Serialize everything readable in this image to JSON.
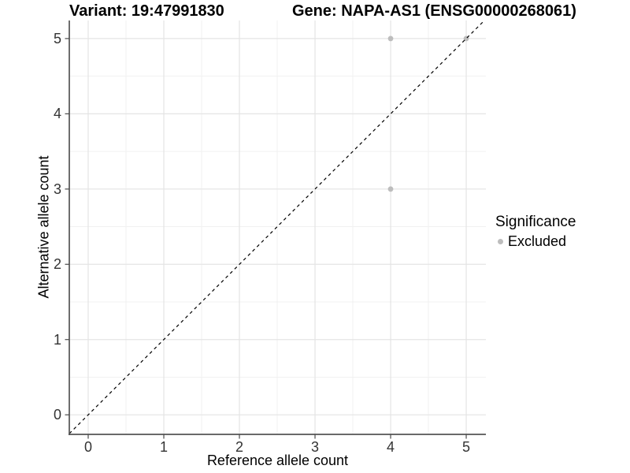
{
  "header": {
    "variant_title": "Variant: 19:47991830",
    "gene_title": "Gene: NAPA-AS1 (ENSG00000268061)"
  },
  "chart_data": {
    "type": "scatter",
    "xlabel": "Reference allele count",
    "ylabel": "Alternative allele count",
    "x_ticks": [
      0,
      1,
      2,
      3,
      4,
      5
    ],
    "y_ticks": [
      0,
      1,
      2,
      3,
      4,
      5
    ],
    "xlim": [
      -0.25,
      5.26
    ],
    "ylim": [
      -0.26,
      5.24
    ],
    "grid": "major and minor gridlines on",
    "series": [
      {
        "name": "Excluded",
        "color": "#bdbdbd",
        "points": [
          [
            4,
            3
          ],
          [
            4,
            5
          ],
          [
            5,
            5
          ]
        ]
      }
    ],
    "reference_line": {
      "type": "identity y=x",
      "style": "dashed",
      "color": "#000000"
    },
    "legend": {
      "title": "Significance",
      "position": "right",
      "items": [
        {
          "label": "Excluded",
          "color": "#bdbdbd"
        }
      ]
    }
  },
  "colors": {
    "background": "#ffffff",
    "grid_major": "#e4e4e4",
    "grid_minor": "#f1f1f1",
    "axis_line": "#555555",
    "tick_mark": "#4a4a4a",
    "tick_text": "#333333",
    "point": "#bdbdbd"
  }
}
